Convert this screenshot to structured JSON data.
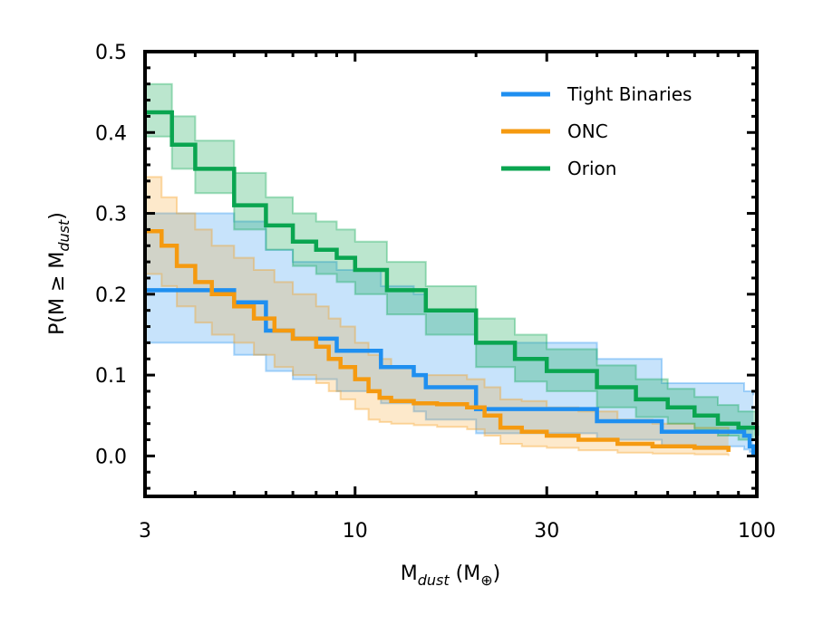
{
  "chart_data": {
    "type": "line",
    "title": "",
    "xlabel": {
      "main": "M",
      "sub": "dust",
      "unit": "(M",
      "unit_sym": "⊕",
      "unit_close": ")"
    },
    "ylabel": {
      "pre": "P(M ≥ M",
      "sub": "dust",
      "post": ")"
    },
    "xscale": "log",
    "xlim": [
      3,
      100
    ],
    "ylim": [
      -0.05,
      0.5
    ],
    "xticks": [
      3,
      10,
      30,
      100
    ],
    "xtick_labels": [
      "3",
      "10",
      "30",
      "100"
    ],
    "yticks": [
      0.0,
      0.1,
      0.2,
      0.3,
      0.4,
      0.5
    ],
    "ytick_labels": [
      "0.0",
      "0.1",
      "0.2",
      "0.3",
      "0.4",
      "0.5"
    ],
    "grid": false,
    "legend_position": "top-right",
    "series": [
      {
        "name": "Tight Binaries",
        "color": "#1f8ff0",
        "x": [
          3,
          4.8,
          5.0,
          5.9,
          6.0,
          6.9,
          7.0,
          8.9,
          9.0,
          11.5,
          11.6,
          13.9,
          14.0,
          14.9,
          15.0,
          19.9,
          20.0,
          39.9,
          40.0,
          57.9,
          58.0,
          89.0,
          93.0,
          96.0,
          98.0
        ],
        "y": [
          0.205,
          0.205,
          0.19,
          0.19,
          0.155,
          0.155,
          0.145,
          0.145,
          0.13,
          0.13,
          0.11,
          0.11,
          0.1,
          0.1,
          0.085,
          0.085,
          0.058,
          0.058,
          0.043,
          0.043,
          0.03,
          0.03,
          0.025,
          0.012,
          0.0
        ],
        "upper": [
          0.3,
          0.3,
          0.29,
          0.29,
          0.255,
          0.255,
          0.24,
          0.24,
          0.23,
          0.23,
          0.21,
          0.21,
          0.2,
          0.2,
          0.18,
          0.18,
          0.14,
          0.14,
          0.12,
          0.12,
          0.09,
          0.09,
          0.08,
          0.08,
          0.075
        ],
        "lower": [
          0.14,
          0.14,
          0.125,
          0.125,
          0.105,
          0.105,
          0.095,
          0.095,
          0.08,
          0.08,
          0.065,
          0.065,
          0.055,
          0.055,
          0.045,
          0.045,
          0.028,
          0.028,
          0.02,
          0.02,
          0.012,
          0.012,
          0.008,
          0.005,
          0.0
        ]
      },
      {
        "name": "ONC",
        "color": "#f59a10",
        "x": [
          3,
          3.3,
          3.6,
          4.0,
          4.4,
          5.0,
          5.6,
          6.3,
          7.0,
          8.0,
          8.6,
          9.2,
          10.0,
          10.8,
          11.5,
          12.3,
          14.0,
          16.0,
          19.0,
          21.0,
          23.0,
          26.0,
          30.0,
          36.0,
          45.0,
          55.0,
          70.0,
          85.0
        ],
        "y": [
          0.278,
          0.26,
          0.235,
          0.215,
          0.2,
          0.185,
          0.17,
          0.155,
          0.145,
          0.135,
          0.12,
          0.11,
          0.095,
          0.08,
          0.072,
          0.068,
          0.065,
          0.064,
          0.06,
          0.05,
          0.035,
          0.03,
          0.025,
          0.02,
          0.015,
          0.012,
          0.01,
          0.005
        ],
        "upper": [
          0.345,
          0.32,
          0.3,
          0.28,
          0.26,
          0.245,
          0.23,
          0.215,
          0.2,
          0.185,
          0.17,
          0.16,
          0.14,
          0.125,
          0.12,
          0.11,
          0.1,
          0.1,
          0.095,
          0.085,
          0.07,
          0.068,
          0.06,
          0.055,
          0.045,
          0.04,
          0.035,
          0.025
        ],
        "lower": [
          0.225,
          0.21,
          0.185,
          0.165,
          0.15,
          0.14,
          0.125,
          0.11,
          0.1,
          0.09,
          0.08,
          0.07,
          0.058,
          0.045,
          0.042,
          0.04,
          0.038,
          0.036,
          0.033,
          0.025,
          0.015,
          0.012,
          0.01,
          0.007,
          0.004,
          0.003,
          0.002,
          0.0
        ]
      },
      {
        "name": "Orion",
        "color": "#0aa550",
        "x": [
          3,
          3.5,
          4.0,
          5.0,
          6.0,
          7.0,
          8.0,
          9.0,
          10.0,
          12.0,
          15.0,
          20.0,
          25.0,
          30.0,
          40.0,
          50.0,
          60.0,
          70.0,
          80.0,
          90.0,
          100.0
        ],
        "y": [
          0.425,
          0.385,
          0.355,
          0.31,
          0.285,
          0.265,
          0.255,
          0.245,
          0.23,
          0.205,
          0.18,
          0.14,
          0.12,
          0.105,
          0.085,
          0.07,
          0.06,
          0.05,
          0.04,
          0.035,
          0.025
        ],
        "upper": [
          0.46,
          0.42,
          0.39,
          0.35,
          0.32,
          0.3,
          0.29,
          0.28,
          0.265,
          0.24,
          0.21,
          0.17,
          0.15,
          0.132,
          0.112,
          0.095,
          0.083,
          0.073,
          0.063,
          0.055,
          0.045
        ],
        "lower": [
          0.395,
          0.355,
          0.325,
          0.28,
          0.255,
          0.235,
          0.225,
          0.215,
          0.2,
          0.175,
          0.15,
          0.11,
          0.092,
          0.08,
          0.06,
          0.048,
          0.04,
          0.032,
          0.025,
          0.02,
          0.013
        ]
      }
    ]
  }
}
